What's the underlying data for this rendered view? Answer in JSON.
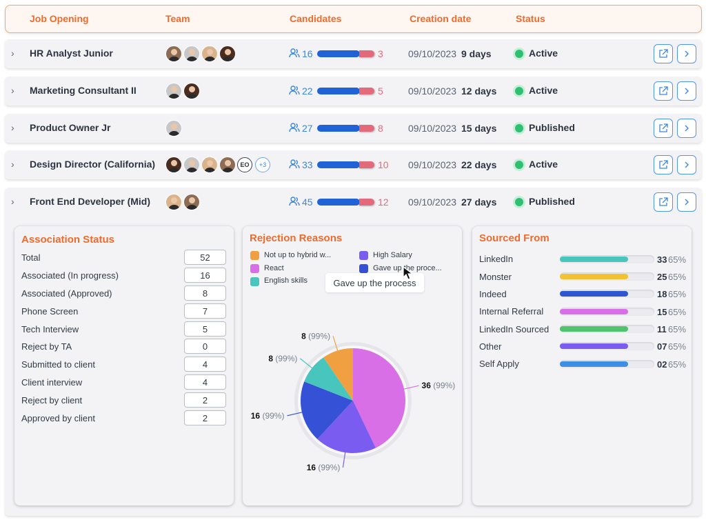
{
  "header": {
    "job_opening": "Job Opening",
    "team": "Team",
    "candidates": "Candidates",
    "creation_date": "Creation date",
    "status": "Status"
  },
  "rows": [
    {
      "title": "HR Analyst Junior",
      "candidates": "16",
      "rejected": "3",
      "date": "09/10/2023",
      "days": "9 days",
      "status": "Active"
    },
    {
      "title": "Marketing Consultant II",
      "candidates": "22",
      "rejected": "5",
      "date": "09/10/2023",
      "days": "12 days",
      "status": "Active"
    },
    {
      "title": "Product Owner Jr",
      "candidates": "27",
      "rejected": "8",
      "date": "09/10/2023",
      "days": "15 days",
      "status": "Published"
    },
    {
      "title": "Design Director (California)",
      "candidates": "33",
      "rejected": "10",
      "date": "09/10/2023",
      "days": "22 days",
      "status": "Active",
      "initials": "EO",
      "more": "+3"
    },
    {
      "title": "Front End Developer  (Mid)",
      "candidates": "45",
      "rejected": "12",
      "date": "09/10/2023",
      "days": "27 days",
      "status": "Published"
    }
  ],
  "association": {
    "title": "Association Status",
    "items": [
      {
        "label": "Total",
        "value": "52"
      },
      {
        "label": "Associated  (In progress)",
        "value": "16"
      },
      {
        "label": "Associated (Approved)",
        "value": "8"
      },
      {
        "label": "Phone Screen",
        "value": "7"
      },
      {
        "label": "Tech Interview",
        "value": "5"
      },
      {
        "label": "Reject by TA",
        "value": "0"
      },
      {
        "label": "Submitted to client",
        "value": "4"
      },
      {
        "label": "Client interview",
        "value": "4"
      },
      {
        "label": "Reject by client",
        "value": "2"
      },
      {
        "label": "Approved by client",
        "value": "2"
      }
    ]
  },
  "rejection": {
    "title": "Rejection Reasons",
    "legend": [
      {
        "label": "Not up to hybrid w...",
        "color": "#f0a040"
      },
      {
        "label": "High Salary",
        "color": "#7b5cf0"
      },
      {
        "label": "React",
        "color": "#d96fe6"
      },
      {
        "label": "Gave up the proce...",
        "color": "#3552d6"
      },
      {
        "label": "English skills",
        "color": "#48c6bd"
      }
    ],
    "tooltip": "Gave up the process"
  },
  "chart_data": {
    "type": "pie",
    "title": "Rejection Reasons",
    "slices": [
      {
        "label": "React",
        "value": 36,
        "pct_label": "(99%)",
        "color": "#d96fe6"
      },
      {
        "label": "High Salary",
        "value": 16,
        "pct_label": "(99%)",
        "color": "#7b5cf0"
      },
      {
        "label": "Gave up the process",
        "value": 16,
        "pct_label": "(99%)",
        "color": "#3552d6"
      },
      {
        "label": "English skills",
        "value": 8,
        "pct_label": "(99%)",
        "color": "#48c6bd"
      },
      {
        "label": "Not up to hybrid work",
        "value": 8,
        "pct_label": "(99%)",
        "color": "#f0a040"
      }
    ]
  },
  "sourced": {
    "title": "Sourced From",
    "items": [
      {
        "label": "LinkedIn",
        "num": "33",
        "pct": "65%",
        "fill": 0.72,
        "color": "#48c6bd"
      },
      {
        "label": "Monster",
        "num": "25",
        "pct": "65%",
        "fill": 0.72,
        "color": "#f2c232"
      },
      {
        "label": "Indeed",
        "num": "18",
        "pct": "65%",
        "fill": 0.72,
        "color": "#2f56d2"
      },
      {
        "label": "Internal Referral",
        "num": "15",
        "pct": "65%",
        "fill": 0.72,
        "color": "#d96fe6"
      },
      {
        "label": "LinkedIn Sourced",
        "num": "11",
        "pct": "65%",
        "fill": 0.72,
        "color": "#4fc36e"
      },
      {
        "label": "Other",
        "num": "07",
        "pct": "65%",
        "fill": 0.72,
        "color": "#7b5cf0"
      },
      {
        "label": "Self Apply",
        "num": "02",
        "pct": "65%",
        "fill": 0.72,
        "color": "#3d8fe6"
      }
    ]
  }
}
